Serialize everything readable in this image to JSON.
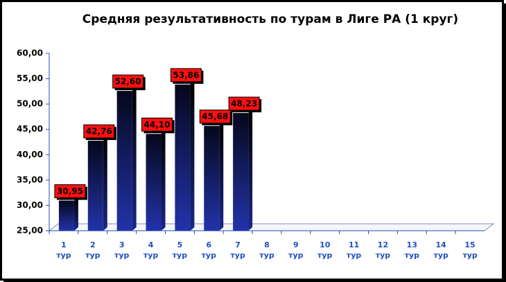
{
  "chart_data": {
    "type": "bar",
    "title": "Средняя результативность по турам в Лиге РА (1 круг)",
    "categories": [
      "1 тур",
      "2 тур",
      "3 тур",
      "4 тур",
      "5 тур",
      "6 тур",
      "7 тур",
      "8 тур",
      "9 тур",
      "10 тур",
      "11 тур",
      "12 тур",
      "13 тур",
      "14 тур",
      "15 тур"
    ],
    "values": [
      30.95,
      42.76,
      52.6,
      44.1,
      53.86,
      45.68,
      48.23,
      null,
      null,
      null,
      null,
      null,
      null,
      null,
      null
    ],
    "value_labels": [
      "30,95",
      "42,76",
      "52,60",
      "44,10",
      "53,86",
      "45,68",
      "48,23",
      null,
      null,
      null,
      null,
      null,
      null,
      null,
      null
    ],
    "color": "#0a0f3a",
    "ylim": [
      25,
      60
    ],
    "yticks": [
      {
        "value": 25,
        "label": "25,00"
      },
      {
        "value": 30,
        "label": "30,00"
      },
      {
        "value": 35,
        "label": "35,00"
      },
      {
        "value": 40,
        "label": "40,00"
      },
      {
        "value": 45,
        "label": "45,00"
      },
      {
        "value": 50,
        "label": "50,00"
      },
      {
        "value": 55,
        "label": "55,00"
      },
      {
        "value": 60,
        "label": "60,00"
      }
    ]
  }
}
